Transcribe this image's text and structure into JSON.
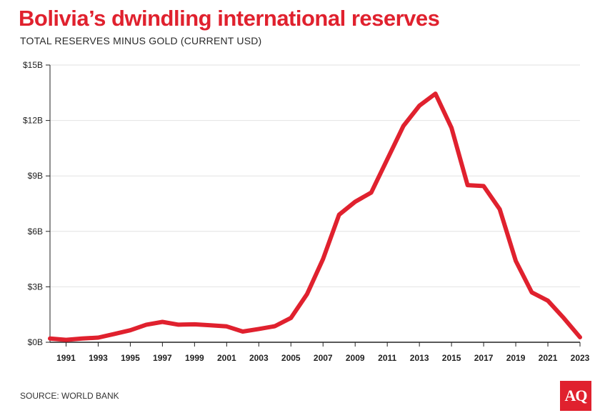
{
  "header": {
    "title": "Bolivia’s dwindling international reserves",
    "subtitle": "TOTAL RESERVES MINUS GOLD (CURRENT USD)"
  },
  "footer": {
    "source": "SOURCE: WORLD BANK",
    "logo": "AQ"
  },
  "colors": {
    "line": "#e0212e",
    "grid": "#e2e2e2",
    "axis": "#222222"
  },
  "chart_data": {
    "type": "line",
    "title": "Bolivia’s dwindling international reserves",
    "subtitle": "TOTAL RESERVES MINUS GOLD (CURRENT USD)",
    "xlabel": "",
    "ylabel": "",
    "unit": "billion USD",
    "xlim": [
      1990,
      2023
    ],
    "ylim": [
      0,
      15
    ],
    "x_ticks": [
      1991,
      1993,
      1995,
      1997,
      1999,
      2001,
      2003,
      2005,
      2007,
      2009,
      2011,
      2013,
      2015,
      2017,
      2019,
      2021,
      2023
    ],
    "x_tick_labels": [
      "1991",
      "1993",
      "1995",
      "1997",
      "1999",
      "2001",
      "2003",
      "2005",
      "2007",
      "2009",
      "2011",
      "2013",
      "2015",
      "2017",
      "2019",
      "2021",
      "2023"
    ],
    "y_ticks": [
      0,
      3,
      6,
      9,
      12,
      15
    ],
    "y_tick_labels": [
      "$0B",
      "$3B",
      "$6B",
      "$9B",
      "$12B",
      "$15B"
    ],
    "grid": true,
    "legend": "none",
    "series": [
      {
        "color": "#e0212e",
        "x": [
          1990,
          1991,
          1992,
          1993,
          1994,
          1995,
          1996,
          1997,
          1998,
          1999,
          2000,
          2001,
          2002,
          2003,
          2004,
          2005,
          2006,
          2007,
          2008,
          2009,
          2010,
          2011,
          2012,
          2013,
          2014,
          2015,
          2016,
          2017,
          2018,
          2019,
          2020,
          2021,
          2022,
          2023
        ],
        "values": [
          0.2,
          0.13,
          0.2,
          0.25,
          0.45,
          0.65,
          0.95,
          1.1,
          0.95,
          0.97,
          0.92,
          0.86,
          0.58,
          0.72,
          0.87,
          1.32,
          2.6,
          4.5,
          6.9,
          7.6,
          8.1,
          9.9,
          11.7,
          12.8,
          13.45,
          11.6,
          8.5,
          8.45,
          7.2,
          4.4,
          2.7,
          2.25,
          1.3,
          0.27
        ]
      }
    ]
  }
}
